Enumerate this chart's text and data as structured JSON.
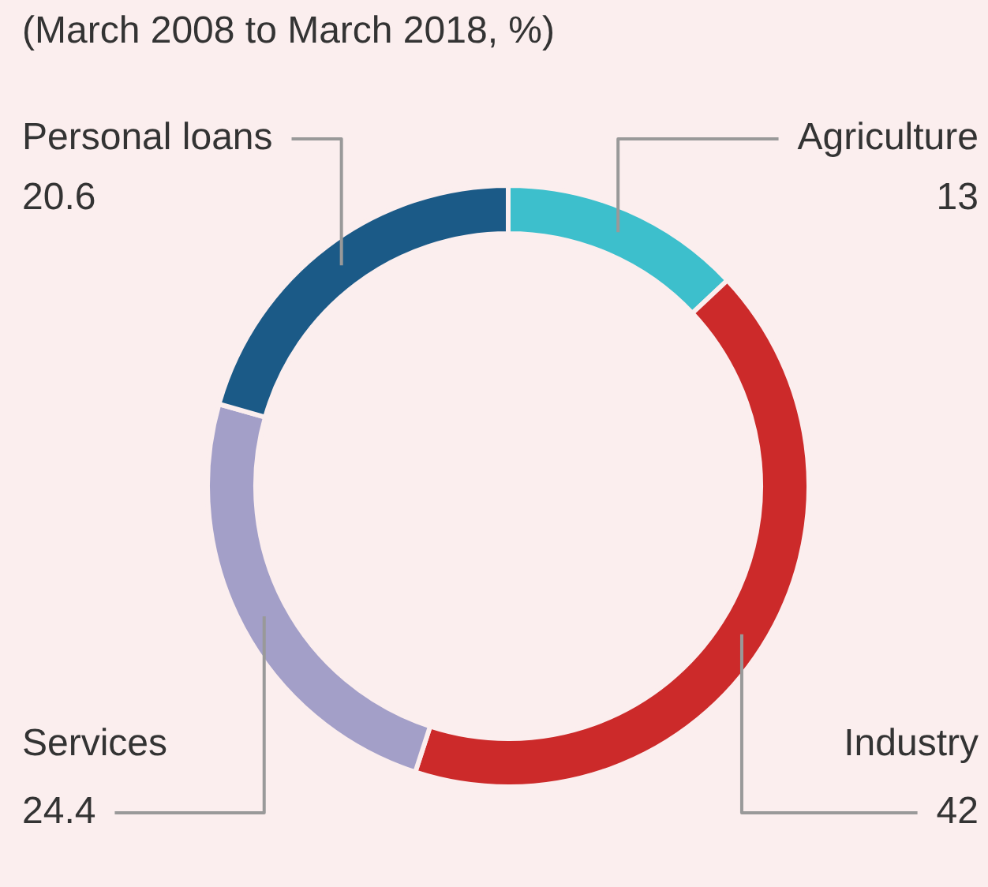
{
  "chart_data": {
    "type": "donut",
    "subtitle": "(March 2008 to March 2018, %)",
    "categories": [
      "Agriculture",
      "Industry",
      "Services",
      "Personal loans"
    ],
    "values": [
      13,
      42,
      24.4,
      20.6
    ],
    "colors": [
      "#3dbfcc",
      "#cc2a2a",
      "#a39fc8",
      "#1b5a87"
    ],
    "data_labels": true,
    "legend": false
  }
}
